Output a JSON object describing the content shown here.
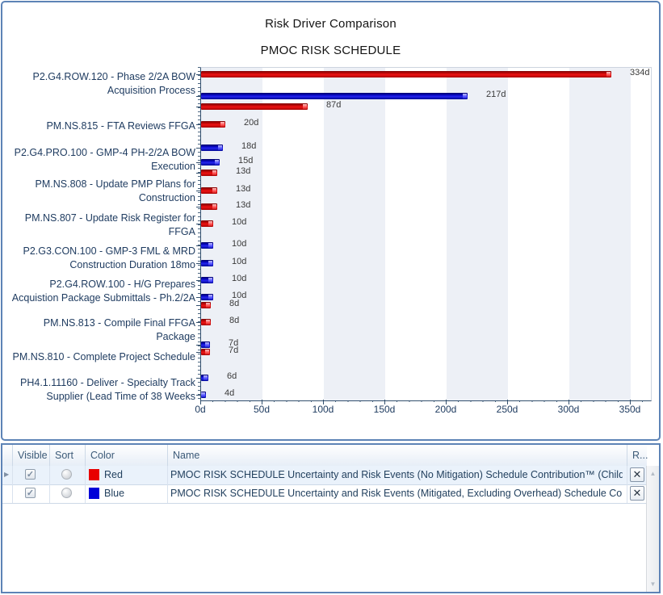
{
  "chart_data": {
    "type": "bar",
    "orientation": "horizontal",
    "title": "Risk Driver Comparison",
    "subtitle": "PMOC RISK SCHEDULE",
    "legend_position": "bottom-table",
    "grid": "vertical-bands-50d",
    "x_axis": {
      "unit": "days",
      "tick_labels": [
        "0d",
        "50d",
        "100d",
        "150d",
        "200d",
        "250d",
        "300d",
        "350d"
      ],
      "tick_values": [
        0,
        50,
        100,
        150,
        200,
        250,
        300,
        350
      ],
      "min": 0,
      "max": 366
    },
    "series": [
      {
        "name": "Red",
        "color": "#e00000"
      },
      {
        "name": "Blue",
        "color": "#0000d8"
      }
    ],
    "categories": [
      {
        "label_lines": [
          "P2.G4.ROW.120 - Phase 2/2A  BOW",
          "Acquisition Process"
        ],
        "label_center_y": 101,
        "bars": [
          {
            "series": "Red",
            "days": 334,
            "label": "334d",
            "y": 8
          },
          {
            "series": "Blue",
            "days": 217,
            "label": "217d",
            "y": 35
          }
        ]
      },
      {
        "label_lines": [
          "PM.NS.815 - FTA Reviews FFGA"
        ],
        "label_center_y": 153,
        "bars": [
          {
            "series": "Red",
            "days": 87,
            "label": "87d",
            "y": 48
          },
          {
            "series": "Red",
            "days": 20,
            "label": "20d",
            "y": 70
          }
        ]
      },
      {
        "label_lines": [
          "P2.G4.PRO.100 - GMP-4 PH-2/2A BOW",
          "Execution"
        ],
        "label_center_y": 195,
        "bars": [
          {
            "series": "Blue",
            "days": 18,
            "label": "18d",
            "y": 99
          },
          {
            "series": "Blue",
            "days": 15,
            "label": "15d",
            "y": 117
          }
        ]
      },
      {
        "label_lines": [
          "PM.NS.808 - Update PMP Plans for",
          "Construction"
        ],
        "label_center_y": 234,
        "bars": [
          {
            "series": "Red",
            "days": 13,
            "label": "13d",
            "y": 130
          },
          {
            "series": "Red",
            "days": 13,
            "label": "13d",
            "y": 152
          }
        ]
      },
      {
        "label_lines": [
          "PM.NS.807 - Update Risk Register for",
          "FFGA"
        ],
        "label_center_y": 276,
        "bars": [
          {
            "series": "Red",
            "days": 13,
            "label": "13d",
            "y": 172
          },
          {
            "series": "Red",
            "days": 10,
            "label": "10d",
            "y": 193
          }
        ]
      },
      {
        "label_lines": [
          "P2.G3.CON.100 - GMP-3 FML & MRD",
          "Construction Duration 18mo"
        ],
        "label_center_y": 317,
        "bars": [
          {
            "series": "Blue",
            "days": 10,
            "label": "10d",
            "y": 220
          },
          {
            "series": "Blue",
            "days": 10,
            "label": "10d",
            "y": 242
          }
        ]
      },
      {
        "label_lines": [
          "P2.G4.ROW.100 - H/G Prepares",
          "Acquistion Package Submittals - Ph.2/2A"
        ],
        "label_center_y": 358,
        "bars": [
          {
            "series": "Blue",
            "days": 10,
            "label": "10d",
            "y": 263
          },
          {
            "series": "Blue",
            "days": 10,
            "label": "10d",
            "y": 284
          }
        ]
      },
      {
        "label_lines": [
          "PM.NS.813 - Compile Final FFGA Package"
        ],
        "label_center_y": 397,
        "bars": [
          {
            "series": "Red",
            "days": 8,
            "label": "8d",
            "y": 294
          },
          {
            "series": "Red",
            "days": 8,
            "label": "8d",
            "y": 315
          }
        ]
      },
      {
        "label_lines": [
          "PM.NS.810 - Complete Project Schedule"
        ],
        "label_center_y": 439,
        "bars": [
          {
            "series": "Blue",
            "days": 7,
            "label": "7d",
            "y": 343
          },
          {
            "series": "Red",
            "days": 7,
            "label": "7d",
            "y": 352
          }
        ]
      },
      {
        "label_lines": [
          "PH4.1.11160 - Deliver - Specialty Track",
          "Supplier (Lead Time of 38 Weeks"
        ],
        "label_center_y": 480,
        "bars": [
          {
            "series": "Blue",
            "days": 6,
            "label": "6d",
            "y": 384
          },
          {
            "series": "Blue",
            "days": 4,
            "label": "4d",
            "y": 405
          }
        ]
      }
    ]
  },
  "table": {
    "headers": {
      "visible": "Visible",
      "sort": "Sort",
      "color": "Color",
      "name": "Name",
      "remove": "R..."
    },
    "rows": [
      {
        "visible": true,
        "selected": true,
        "color_name": "Red",
        "color_hex": "#e80000",
        "name": "PMOC RISK SCHEDULE Uncertainty and Risk Events (No Mitigation) Schedule Contribution™ (Children) f..."
      },
      {
        "visible": true,
        "selected": false,
        "color_name": "Blue",
        "color_hex": "#0000d8",
        "name": "PMOC RISK SCHEDULE Uncertainty and Risk Events (Mitigated, Excluding Overhead) Schedule Contributi..."
      }
    ]
  }
}
